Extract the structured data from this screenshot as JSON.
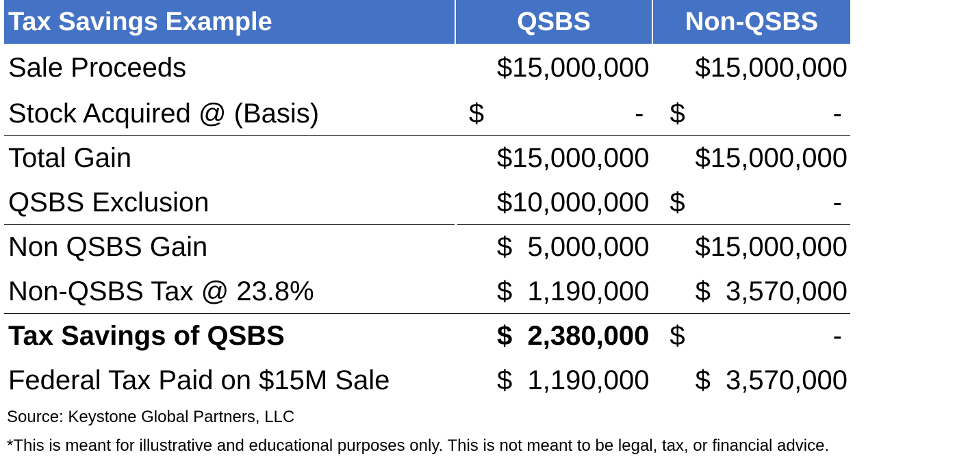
{
  "header": {
    "title": "Tax Savings Example",
    "col_qsbs": "QSBS",
    "col_non_qsbs": "Non-QSBS"
  },
  "rows": [
    {
      "label": "Sale Proceeds",
      "qsbs": "$15,000,000",
      "non_qsbs": "$15,000,000"
    },
    {
      "label": "Stock Acquired @ (Basis)",
      "qsbs_symbol": "$",
      "qsbs_dash": "-",
      "non_qsbs_symbol": "$",
      "non_qsbs_dash": "-"
    },
    {
      "label": "Total Gain",
      "qsbs": "$15,000,000",
      "non_qsbs": "$15,000,000"
    },
    {
      "label": "QSBS Exclusion",
      "qsbs": "$10,000,000",
      "non_qsbs_symbol": "$",
      "non_qsbs_dash": "-"
    },
    {
      "label": "Non QSBS Gain",
      "qsbs": "$  5,000,000",
      "non_qsbs": "$15,000,000"
    },
    {
      "label": "Non-QSBS Tax @ 23.8%",
      "qsbs": "$  1,190,000",
      "non_qsbs": "$  3,570,000"
    },
    {
      "label": "Tax Savings of QSBS",
      "qsbs": "$  2,380,000",
      "non_qsbs_symbol": "$",
      "non_qsbs_dash": "-"
    },
    {
      "label": "Federal Tax Paid on $15M Sale",
      "qsbs": "$  1,190,000",
      "non_qsbs": "$  3,570,000"
    }
  ],
  "notes": {
    "source": "Source: Keystone Global Partners, LLC",
    "disclaimer": "*This is meant for illustrative and educational purposes only. This is not meant to be legal, tax, or financial advice."
  },
  "colors": {
    "header_bg": "#4472c4",
    "header_text": "#ffffff"
  }
}
